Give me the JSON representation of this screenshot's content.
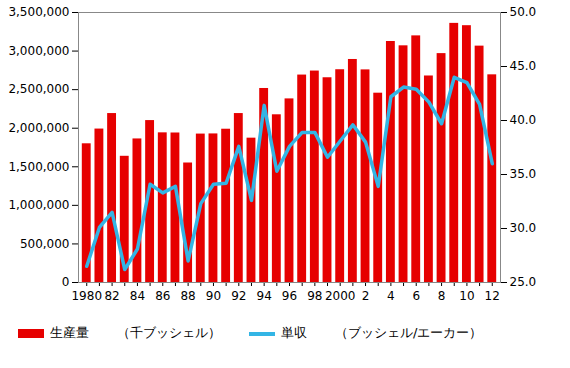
{
  "chart_data": {
    "type": "bar",
    "categories": [
      "1980",
      null,
      "82",
      null,
      "84",
      null,
      "86",
      null,
      "88",
      null,
      "90",
      null,
      "92",
      null,
      "94",
      null,
      "96",
      null,
      "98",
      null,
      "2000",
      null,
      "2",
      null,
      "4",
      null,
      "6",
      null,
      "8",
      null,
      "10",
      null,
      "12"
    ],
    "series": [
      {
        "name": "生産量",
        "type": "bar",
        "color": "#e60000",
        "values": [
          1798000,
          1989000,
          2190000,
          1636000,
          1861000,
          2099000,
          1940000,
          1938000,
          1549000,
          1924000,
          1926000,
          1987000,
          2190000,
          1871000,
          2515000,
          2174000,
          2380000,
          2689000,
          2741000,
          2654000,
          2758000,
          2891000,
          2756000,
          2454000,
          3124000,
          3068000,
          3197000,
          2677000,
          2967000,
          3359000,
          3329000,
          3064000,
          2692000
        ]
      },
      {
        "name": "単収",
        "type": "line",
        "color": "#33b5e5",
        "axis": "y2",
        "values": [
          26.5,
          30.1,
          31.5,
          26.2,
          28.1,
          34.1,
          33.3,
          33.9,
          27.0,
          32.3,
          34.1,
          34.2,
          37.6,
          32.6,
          41.4,
          35.3,
          37.6,
          38.9,
          38.9,
          36.6,
          38.1,
          39.6,
          38.0,
          33.9,
          42.2,
          43.1,
          42.9,
          41.7,
          39.7,
          44.0,
          43.5,
          41.5,
          36.0
        ]
      }
    ],
    "ylabel": "（千ブッシェル）",
    "y2label": "（ブッシェル/エーカー）",
    "ylim": [
      0,
      3500000
    ],
    "yticks": [
      0,
      {
        "value": 500000,
        "label": "500,000"
      },
      {
        "value": 1000000,
        "label": "1,000,000"
      },
      {
        "value": 1500000,
        "label": "1,500,000"
      },
      {
        "value": 2000000,
        "label": "2,000,000"
      },
      {
        "value": 2500000,
        "label": "2,500,000"
      },
      {
        "value": 3000000,
        "label": "3,000,000"
      },
      {
        "value": 3500000,
        "label": "3,500,000"
      }
    ],
    "y2lim": [
      25,
      50
    ],
    "y2ticks": [
      {
        "value": 25,
        "label": "25.0"
      },
      {
        "value": 30,
        "label": "30.0"
      },
      {
        "value": 35,
        "label": "35.0"
      },
      {
        "value": 40,
        "label": "40.0"
      },
      {
        "value": 45,
        "label": "45.0"
      },
      {
        "value": 50,
        "label": "50.0"
      }
    ],
    "grid": false,
    "legend": "bottom"
  }
}
